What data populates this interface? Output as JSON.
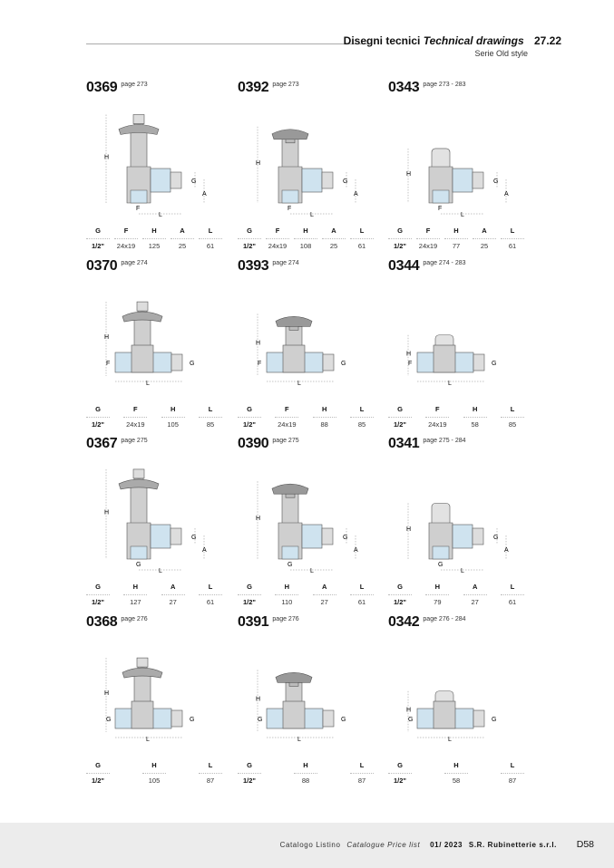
{
  "header": {
    "title": "Disegni tecnici",
    "title_italic": "Technical drawings",
    "section": "27.22",
    "subtitle": "Serie Old style"
  },
  "products": [
    {
      "code": "0369",
      "page": "page 273",
      "type": "angle",
      "head": "cross",
      "cols": [
        "G",
        "F",
        "H",
        "A",
        "L"
      ],
      "vals": [
        "1/2\"",
        "24x19",
        "125",
        "25",
        "61"
      ]
    },
    {
      "code": "0392",
      "page": "page 273",
      "type": "angle",
      "head": "wheel",
      "cols": [
        "G",
        "F",
        "H",
        "A",
        "L"
      ],
      "vals": [
        "1/2\"",
        "24x19",
        "108",
        "25",
        "61"
      ]
    },
    {
      "code": "0343",
      "page": "page 273 - 283",
      "type": "angle",
      "head": "thermo",
      "cols": [
        "G",
        "F",
        "H",
        "A",
        "L"
      ],
      "vals": [
        "1/2\"",
        "24x19",
        "77",
        "25",
        "61"
      ]
    },
    {
      "code": "0370",
      "page": "page 274",
      "type": "straight",
      "head": "cross",
      "cols": [
        "G",
        "F",
        "H",
        "L"
      ],
      "vals": [
        "1/2\"",
        "24x19",
        "105",
        "85"
      ]
    },
    {
      "code": "0393",
      "page": "page 274",
      "type": "straight",
      "head": "wheel",
      "cols": [
        "G",
        "F",
        "H",
        "L"
      ],
      "vals": [
        "1/2\"",
        "24x19",
        "88",
        "85"
      ]
    },
    {
      "code": "0344",
      "page": "page 274 - 283",
      "type": "straight",
      "head": "thermo",
      "cols": [
        "G",
        "F",
        "H",
        "L"
      ],
      "vals": [
        "1/2\"",
        "24x19",
        "58",
        "85"
      ]
    },
    {
      "code": "0367",
      "page": "page 275",
      "type": "angle",
      "head": "cross",
      "cols": [
        "G",
        "H",
        "A",
        "L"
      ],
      "vals": [
        "1/2\"",
        "127",
        "27",
        "61"
      ]
    },
    {
      "code": "0390",
      "page": "page 275",
      "type": "angle",
      "head": "wheel",
      "cols": [
        "G",
        "H",
        "A",
        "L"
      ],
      "vals": [
        "1/2\"",
        "110",
        "27",
        "61"
      ]
    },
    {
      "code": "0341",
      "page": "page 275 - 284",
      "type": "angle",
      "head": "thermo",
      "cols": [
        "G",
        "H",
        "A",
        "L"
      ],
      "vals": [
        "1/2\"",
        "79",
        "27",
        "61"
      ]
    },
    {
      "code": "0368",
      "page": "page 276",
      "type": "straight",
      "head": "cross",
      "cols": [
        "G",
        "H",
        "L"
      ],
      "vals": [
        "1/2\"",
        "105",
        "87"
      ]
    },
    {
      "code": "0391",
      "page": "page 276",
      "type": "straight",
      "head": "wheel",
      "cols": [
        "G",
        "H",
        "L"
      ],
      "vals": [
        "1/2\"",
        "88",
        "87"
      ]
    },
    {
      "code": "0342",
      "page": "page 276 - 284",
      "type": "straight",
      "head": "thermo",
      "cols": [
        "G",
        "H",
        "L"
      ],
      "vals": [
        "1/2\"",
        "58",
        "87"
      ]
    }
  ],
  "footer": {
    "catalog": "Catalogo Listino",
    "catalog_italic": "Catalogue Price list",
    "edition": "01/ 2023",
    "company": "S.R. Rubinetterie s.r.l.",
    "page": "D58"
  }
}
